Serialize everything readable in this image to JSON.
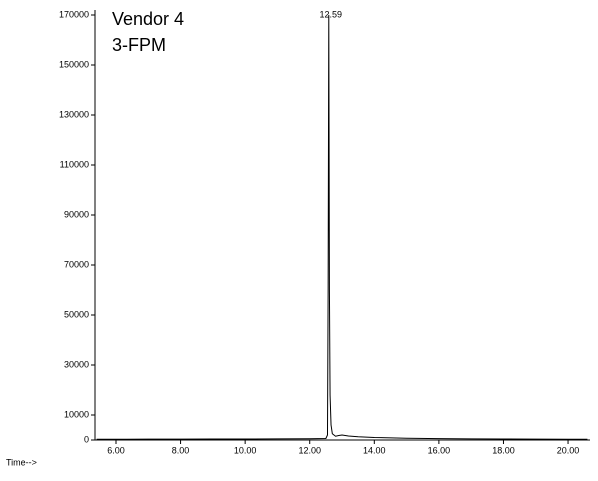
{
  "chart_data": {
    "type": "line",
    "title": "Vendor 4",
    "subtitle": "3-FPM",
    "x_label": "Time-->",
    "x": [
      5.4,
      6,
      7,
      8,
      9,
      10,
      11,
      12,
      12.5,
      12.55,
      12.57,
      12.59,
      12.61,
      12.63,
      12.66,
      12.7,
      12.8,
      12.9,
      13.0,
      13.2,
      13.5,
      14,
      15,
      16,
      17,
      18,
      19,
      20,
      20.6
    ],
    "values": [
      300,
      300,
      350,
      350,
      400,
      400,
      450,
      500,
      600,
      2000,
      60000,
      170000,
      60000,
      18000,
      6000,
      2500,
      1500,
      1800,
      2000,
      1600,
      1300,
      1000,
      700,
      550,
      450,
      400,
      350,
      300,
      300
    ],
    "color": "#000000",
    "xlim": [
      5.35,
      20.68
    ],
    "ylim": [
      0,
      172000
    ],
    "xticks": [
      {
        "value": 6,
        "label": "6.00"
      },
      {
        "value": 8,
        "label": "8.00"
      },
      {
        "value": 10,
        "label": "10.00"
      },
      {
        "value": 12,
        "label": "12.00"
      },
      {
        "value": 14,
        "label": "14.00"
      },
      {
        "value": 16,
        "label": "16.00"
      },
      {
        "value": 18,
        "label": "18.00"
      },
      {
        "value": 20,
        "label": "20.00"
      }
    ],
    "yticks": [
      0,
      10000,
      30000,
      50000,
      70000,
      90000,
      110000,
      130000,
      150000,
      170000
    ],
    "annotations": [
      {
        "x": 12.59,
        "y": 170000,
        "text": "12.59"
      }
    ]
  }
}
